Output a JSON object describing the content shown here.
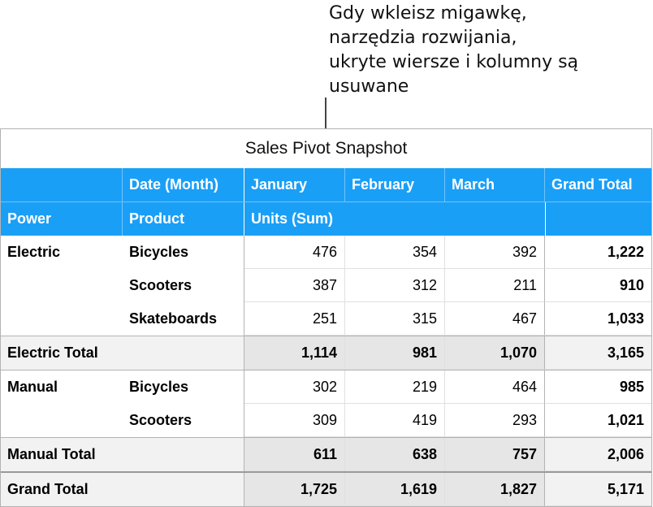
{
  "callout": {
    "text": "Gdy wkleisz migawkę,\nnarzędzia rozwijania,\nukryte wiersze i kolumny są\nusuwane"
  },
  "table": {
    "title": "Sales Pivot Snapshot",
    "header1": [
      "",
      "Date (Month)",
      "January",
      "February",
      "March",
      "Grand Total"
    ],
    "header2": [
      "Power",
      "Product",
      "Units (Sum)",
      "",
      "",
      ""
    ],
    "rows": [
      {
        "kind": "data",
        "cells": [
          "Electric",
          "Bicycles",
          "476",
          "354",
          "392",
          "1,222"
        ]
      },
      {
        "kind": "data",
        "cells": [
          "",
          "Scooters",
          "387",
          "312",
          "211",
          "910"
        ]
      },
      {
        "kind": "data",
        "cells": [
          "",
          "Skateboards",
          "251",
          "315",
          "467",
          "1,033"
        ]
      },
      {
        "kind": "total",
        "cells": [
          "Electric Total",
          "",
          "1,114",
          "981",
          "1,070",
          "3,165"
        ]
      },
      {
        "kind": "data",
        "cells": [
          "Manual",
          "Bicycles",
          "302",
          "219",
          "464",
          "985"
        ]
      },
      {
        "kind": "data",
        "cells": [
          "",
          "Scooters",
          "309",
          "419",
          "293",
          "1,021"
        ]
      },
      {
        "kind": "total",
        "cells": [
          "Manual Total",
          "",
          "611",
          "638",
          "757",
          "2,006"
        ]
      },
      {
        "kind": "grand",
        "cells": [
          "Grand Total",
          "",
          "1,725",
          "1,619",
          "1,827",
          "5,171"
        ]
      }
    ]
  }
}
